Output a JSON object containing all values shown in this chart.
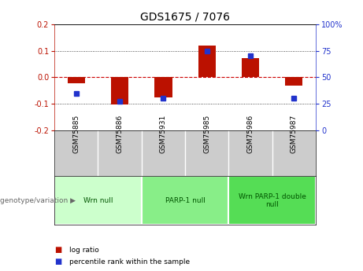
{
  "title": "GDS1675 / 7076",
  "samples": [
    "GSM75885",
    "GSM75886",
    "GSM75931",
    "GSM75985",
    "GSM75986",
    "GSM75987"
  ],
  "log_ratio": [
    -0.022,
    -0.103,
    -0.075,
    0.12,
    0.072,
    -0.032
  ],
  "percentile_rank": [
    35,
    27,
    30,
    75,
    70,
    30
  ],
  "groups": [
    {
      "label": "Wrn null",
      "start": 0,
      "end": 2,
      "color": "#ccffcc"
    },
    {
      "label": "PARP-1 null",
      "start": 2,
      "end": 4,
      "color": "#88ee88"
    },
    {
      "label": "Wrn PARP-1 double\nnull",
      "start": 4,
      "end": 6,
      "color": "#55dd55"
    }
  ],
  "ylim_left": [
    -0.2,
    0.2
  ],
  "ylim_right": [
    0,
    100
  ],
  "yticks_left": [
    -0.2,
    -0.1,
    0.0,
    0.1,
    0.2
  ],
  "yticks_right": [
    0,
    25,
    50,
    75,
    100
  ],
  "bar_color": "#bb1100",
  "dot_color": "#2233cc",
  "zero_line_color": "#cc0000",
  "grid_line_color": "#222222",
  "bg_color": "#ffffff",
  "plot_bg_color": "#ffffff",
  "sample_bg_color": "#cccccc",
  "genotype_label": "genotype/variation"
}
